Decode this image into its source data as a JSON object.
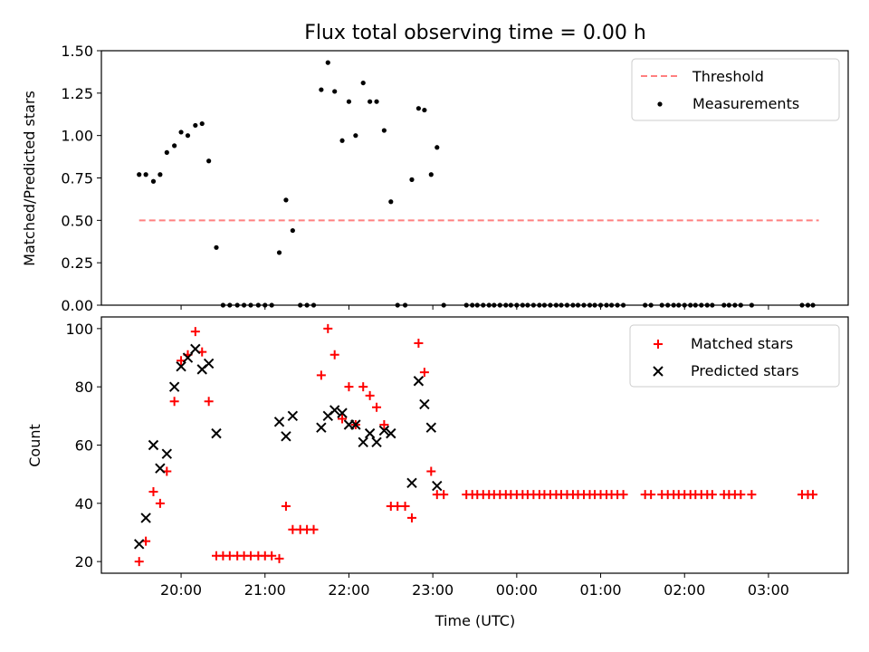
{
  "title": "Flux total observing time = 0.00 h",
  "chart_data": [
    {
      "type": "scatter",
      "ylabel": "Matched/Predicted stars",
      "xlabel": "",
      "xlim_hours": [
        19.05,
        27.95
      ],
      "ylim": [
        0,
        1.5
      ],
      "yticks": [
        "0.00",
        "0.25",
        "0.50",
        "0.75",
        "1.00",
        "1.25",
        "1.50"
      ],
      "legend_position": "top-right",
      "threshold": {
        "name": "Threshold",
        "value": 0.5,
        "x_range_hours": [
          19.5,
          27.6
        ],
        "color": "#ff8080",
        "style": "dashed"
      },
      "series": [
        {
          "name": "Measurements",
          "color": "#000000",
          "marker": "dot",
          "points": [
            [
              19.5,
              0.77
            ],
            [
              19.58,
              0.77
            ],
            [
              19.67,
              0.73
            ],
            [
              19.75,
              0.77
            ],
            [
              19.83,
              0.9
            ],
            [
              19.92,
              0.94
            ],
            [
              20.0,
              1.02
            ],
            [
              20.08,
              1.0
            ],
            [
              20.17,
              1.06
            ],
            [
              20.25,
              1.07
            ],
            [
              20.33,
              0.85
            ],
            [
              20.42,
              0.34
            ],
            [
              20.5,
              0
            ],
            [
              20.58,
              0
            ],
            [
              20.67,
              0
            ],
            [
              20.75,
              0
            ],
            [
              20.83,
              0
            ],
            [
              20.92,
              0
            ],
            [
              21.0,
              0
            ],
            [
              21.08,
              0
            ],
            [
              21.17,
              0.31
            ],
            [
              21.25,
              0.62
            ],
            [
              21.33,
              0.44
            ],
            [
              21.42,
              0
            ],
            [
              21.5,
              0
            ],
            [
              21.58,
              0
            ],
            [
              21.67,
              1.27
            ],
            [
              21.75,
              1.43
            ],
            [
              21.83,
              1.26
            ],
            [
              21.92,
              0.97
            ],
            [
              22.0,
              1.2
            ],
            [
              22.08,
              1.0
            ],
            [
              22.17,
              1.31
            ],
            [
              22.25,
              1.2
            ],
            [
              22.33,
              1.2
            ],
            [
              22.42,
              1.03
            ],
            [
              22.5,
              0.61
            ],
            [
              22.58,
              0
            ],
            [
              22.67,
              0
            ],
            [
              22.75,
              0.74
            ],
            [
              22.83,
              1.16
            ],
            [
              22.9,
              1.15
            ],
            [
              22.98,
              0.77
            ],
            [
              23.05,
              0.93
            ],
            [
              23.13,
              0
            ],
            [
              23.4,
              0
            ],
            [
              23.47,
              0
            ],
            [
              23.53,
              0
            ],
            [
              23.6,
              0
            ],
            [
              23.67,
              0
            ],
            [
              23.73,
              0
            ],
            [
              23.8,
              0
            ],
            [
              23.87,
              0
            ],
            [
              23.93,
              0
            ],
            [
              24.0,
              0
            ],
            [
              24.07,
              0
            ],
            [
              24.13,
              0
            ],
            [
              24.2,
              0
            ],
            [
              24.27,
              0
            ],
            [
              24.33,
              0
            ],
            [
              24.4,
              0
            ],
            [
              24.47,
              0
            ],
            [
              24.53,
              0
            ],
            [
              24.6,
              0
            ],
            [
              24.67,
              0
            ],
            [
              24.73,
              0
            ],
            [
              24.8,
              0
            ],
            [
              24.87,
              0
            ],
            [
              24.93,
              0
            ],
            [
              25.0,
              0
            ],
            [
              25.07,
              0
            ],
            [
              25.13,
              0
            ],
            [
              25.2,
              0
            ],
            [
              25.27,
              0
            ],
            [
              25.53,
              0
            ],
            [
              25.6,
              0
            ],
            [
              25.73,
              0
            ],
            [
              25.8,
              0
            ],
            [
              25.87,
              0
            ],
            [
              25.93,
              0
            ],
            [
              26.0,
              0
            ],
            [
              26.07,
              0
            ],
            [
              26.13,
              0
            ],
            [
              26.2,
              0
            ],
            [
              26.27,
              0
            ],
            [
              26.33,
              0
            ],
            [
              26.47,
              0
            ],
            [
              26.53,
              0
            ],
            [
              26.6,
              0
            ],
            [
              26.67,
              0
            ],
            [
              26.8,
              0
            ],
            [
              27.4,
              0
            ],
            [
              27.47,
              0
            ],
            [
              27.53,
              0
            ]
          ]
        }
      ]
    },
    {
      "type": "scatter",
      "ylabel": "Count",
      "xlabel": "Time (UTC)",
      "xlim_hours": [
        19.05,
        27.95
      ],
      "ylim": [
        16,
        104
      ],
      "yticks": [
        "20",
        "40",
        "60",
        "80",
        "100"
      ],
      "xticks": [
        {
          "hour": 20,
          "label": "20:00"
        },
        {
          "hour": 21,
          "label": "21:00"
        },
        {
          "hour": 22,
          "label": "22:00"
        },
        {
          "hour": 23,
          "label": "23:00"
        },
        {
          "hour": 24,
          "label": "00:00"
        },
        {
          "hour": 25,
          "label": "01:00"
        },
        {
          "hour": 26,
          "label": "02:00"
        },
        {
          "hour": 27,
          "label": "03:00"
        }
      ],
      "legend_position": "top-right",
      "series": [
        {
          "name": "Matched stars",
          "color": "#ff0000",
          "marker": "plus",
          "points": [
            [
              19.5,
              20
            ],
            [
              19.58,
              27
            ],
            [
              19.67,
              44
            ],
            [
              19.75,
              40
            ],
            [
              19.83,
              51
            ],
            [
              19.92,
              75
            ],
            [
              20.0,
              89
            ],
            [
              20.08,
              91
            ],
            [
              20.17,
              99
            ],
            [
              20.25,
              92
            ],
            [
              20.33,
              75
            ],
            [
              20.42,
              22
            ],
            [
              20.5,
              22
            ],
            [
              20.58,
              22
            ],
            [
              20.67,
              22
            ],
            [
              20.75,
              22
            ],
            [
              20.83,
              22
            ],
            [
              20.92,
              22
            ],
            [
              21.0,
              22
            ],
            [
              21.08,
              22
            ],
            [
              21.17,
              21
            ],
            [
              21.25,
              39
            ],
            [
              21.33,
              31
            ],
            [
              21.42,
              31
            ],
            [
              21.5,
              31
            ],
            [
              21.58,
              31
            ],
            [
              21.67,
              84
            ],
            [
              21.75,
              100
            ],
            [
              21.83,
              91
            ],
            [
              21.92,
              69
            ],
            [
              22.0,
              80
            ],
            [
              22.08,
              67
            ],
            [
              22.17,
              80
            ],
            [
              22.25,
              77
            ],
            [
              22.33,
              73
            ],
            [
              22.42,
              67
            ],
            [
              22.5,
              39
            ],
            [
              22.58,
              39
            ],
            [
              22.67,
              39
            ],
            [
              22.75,
              35
            ],
            [
              22.83,
              95
            ],
            [
              22.9,
              85
            ],
            [
              22.98,
              51
            ],
            [
              23.05,
              43
            ],
            [
              23.13,
              43
            ],
            [
              23.4,
              43
            ],
            [
              23.47,
              43
            ],
            [
              23.53,
              43
            ],
            [
              23.6,
              43
            ],
            [
              23.67,
              43
            ],
            [
              23.73,
              43
            ],
            [
              23.8,
              43
            ],
            [
              23.87,
              43
            ],
            [
              23.93,
              43
            ],
            [
              24.0,
              43
            ],
            [
              24.07,
              43
            ],
            [
              24.13,
              43
            ],
            [
              24.2,
              43
            ],
            [
              24.27,
              43
            ],
            [
              24.33,
              43
            ],
            [
              24.4,
              43
            ],
            [
              24.47,
              43
            ],
            [
              24.53,
              43
            ],
            [
              24.6,
              43
            ],
            [
              24.67,
              43
            ],
            [
              24.73,
              43
            ],
            [
              24.8,
              43
            ],
            [
              24.87,
              43
            ],
            [
              24.93,
              43
            ],
            [
              25.0,
              43
            ],
            [
              25.07,
              43
            ],
            [
              25.13,
              43
            ],
            [
              25.2,
              43
            ],
            [
              25.27,
              43
            ],
            [
              25.53,
              43
            ],
            [
              25.6,
              43
            ],
            [
              25.73,
              43
            ],
            [
              25.8,
              43
            ],
            [
              25.87,
              43
            ],
            [
              25.93,
              43
            ],
            [
              26.0,
              43
            ],
            [
              26.07,
              43
            ],
            [
              26.13,
              43
            ],
            [
              26.2,
              43
            ],
            [
              26.27,
              43
            ],
            [
              26.33,
              43
            ],
            [
              26.47,
              43
            ],
            [
              26.53,
              43
            ],
            [
              26.6,
              43
            ],
            [
              26.67,
              43
            ],
            [
              26.8,
              43
            ],
            [
              27.4,
              43
            ],
            [
              27.47,
              43
            ],
            [
              27.53,
              43
            ]
          ]
        },
        {
          "name": "Predicted stars",
          "color": "#000000",
          "marker": "x",
          "points": [
            [
              19.5,
              26
            ],
            [
              19.58,
              35
            ],
            [
              19.67,
              60
            ],
            [
              19.75,
              52
            ],
            [
              19.83,
              57
            ],
            [
              19.92,
              80
            ],
            [
              20.0,
              87
            ],
            [
              20.08,
              90
            ],
            [
              20.17,
              93
            ],
            [
              20.25,
              86
            ],
            [
              20.33,
              88
            ],
            [
              20.42,
              64
            ],
            [
              21.17,
              68
            ],
            [
              21.25,
              63
            ],
            [
              21.33,
              70
            ],
            [
              21.67,
              66
            ],
            [
              21.75,
              70
            ],
            [
              21.83,
              72
            ],
            [
              21.92,
              71
            ],
            [
              22.0,
              67
            ],
            [
              22.08,
              67
            ],
            [
              22.17,
              61
            ],
            [
              22.25,
              64
            ],
            [
              22.33,
              61
            ],
            [
              22.42,
              65
            ],
            [
              22.5,
              64
            ],
            [
              22.75,
              47
            ],
            [
              22.83,
              82
            ],
            [
              22.9,
              74
            ],
            [
              22.98,
              66
            ],
            [
              23.05,
              46
            ]
          ]
        }
      ]
    }
  ]
}
